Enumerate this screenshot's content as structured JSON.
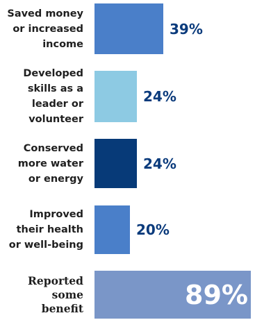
{
  "chart_data": {
    "type": "bar",
    "orientation": "horizontal",
    "categories": [
      "Saved money or increased income",
      "Developed skills as a leader or volunteer",
      "Conserved more water or energy",
      "Improved their health or well-being",
      "Reported some benefit"
    ],
    "label_lines": [
      [
        "Saved money",
        "or increased",
        "income"
      ],
      [
        "Developed",
        "skills as a",
        "leader or",
        "volunteer"
      ],
      [
        "Conserved",
        "more water",
        "or energy"
      ],
      [
        "Improved",
        "their health",
        "or well-being"
      ],
      [
        "Reported",
        "some",
        "benefit"
      ]
    ],
    "values": [
      39,
      24,
      24,
      20,
      89
    ],
    "value_labels": [
      "39%",
      "24%",
      "24%",
      "20%",
      "89%"
    ],
    "bar_colors": [
      "#4a7fc9",
      "#8dcae3",
      "#073a78",
      "#4a7fc9",
      "#7a96c8"
    ],
    "highlight_last": true,
    "unit": "%",
    "title": "",
    "xlabel": "",
    "ylabel": ""
  }
}
